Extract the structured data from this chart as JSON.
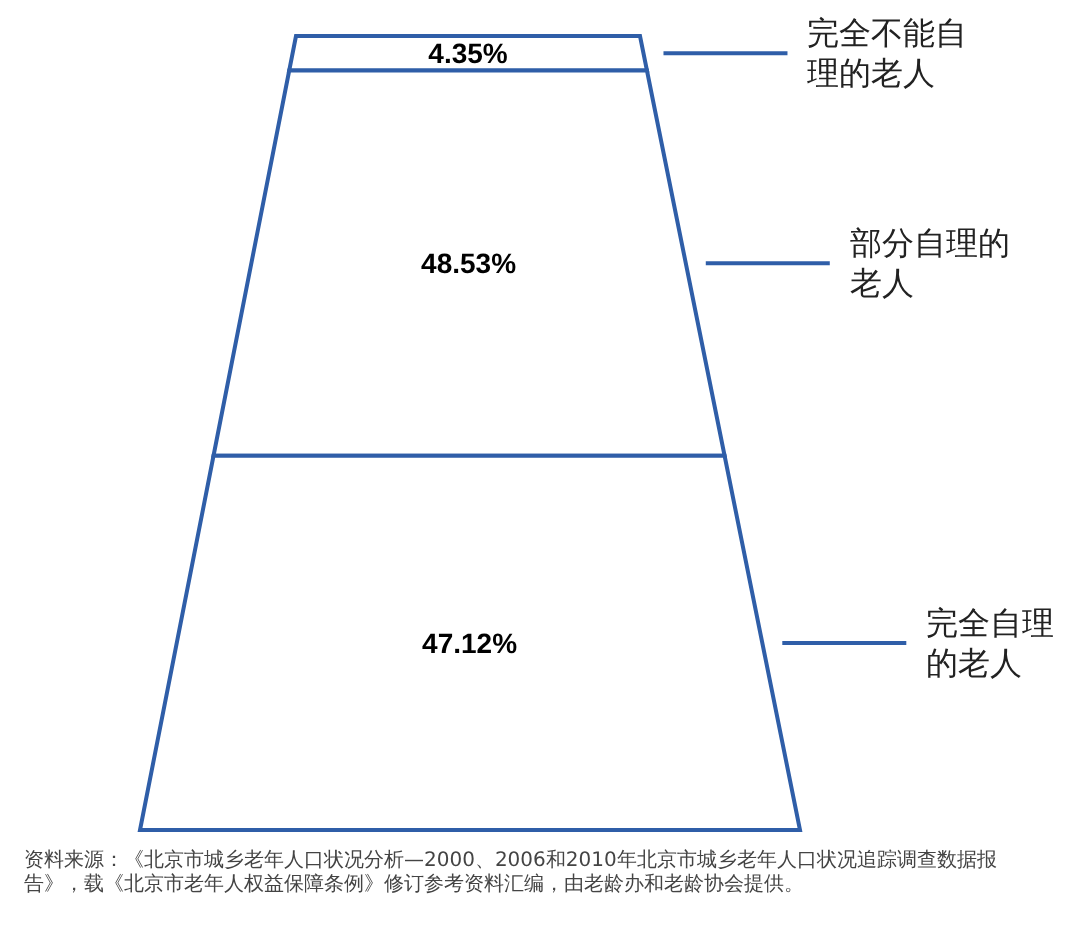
{
  "chart_data": {
    "type": "other",
    "categories": [
      "完全不能自理的老人",
      "部分自理的老人",
      "完全自理的老人"
    ],
    "values": [
      4.35,
      48.53,
      47.12
    ],
    "value_labels": [
      "4.35%",
      "48.53%",
      "47.12%"
    ],
    "color": "#2f5ea8",
    "annotations": [
      "资料来源：《北京市城乡老年人口状况分析—2000、2006和2010年北京市城乡老年人口状况追踪调查数据报告》，载《北京市老年人权益保障条例》修订参考资料汇编，由老龄办和老龄协会提供。"
    ]
  }
}
